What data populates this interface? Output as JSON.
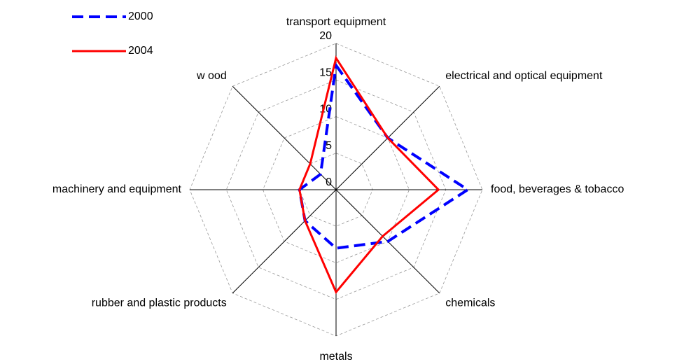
{
  "chart_data": {
    "type": "radar",
    "categories": [
      "transport equipment",
      "electrical and optical equipment",
      "food, beverages & tobacco",
      "chemicals",
      "metals",
      "rubber and plastic products",
      "machinery and equipment",
      "w ood"
    ],
    "series": [
      {
        "name": "2000",
        "color": "#0000ff",
        "dashed": true,
        "values": [
          17,
          10,
          18,
          10,
          8,
          6,
          5,
          3
        ]
      },
      {
        "name": "2004",
        "color": "#ff0000",
        "dashed": false,
        "values": [
          18,
          10,
          14,
          9,
          14,
          6,
          5,
          5
        ]
      }
    ],
    "ylim": [
      0,
      20
    ],
    "yticks": [
      0,
      5,
      10,
      15,
      20
    ],
    "grid": true,
    "legend": "upper left"
  }
}
